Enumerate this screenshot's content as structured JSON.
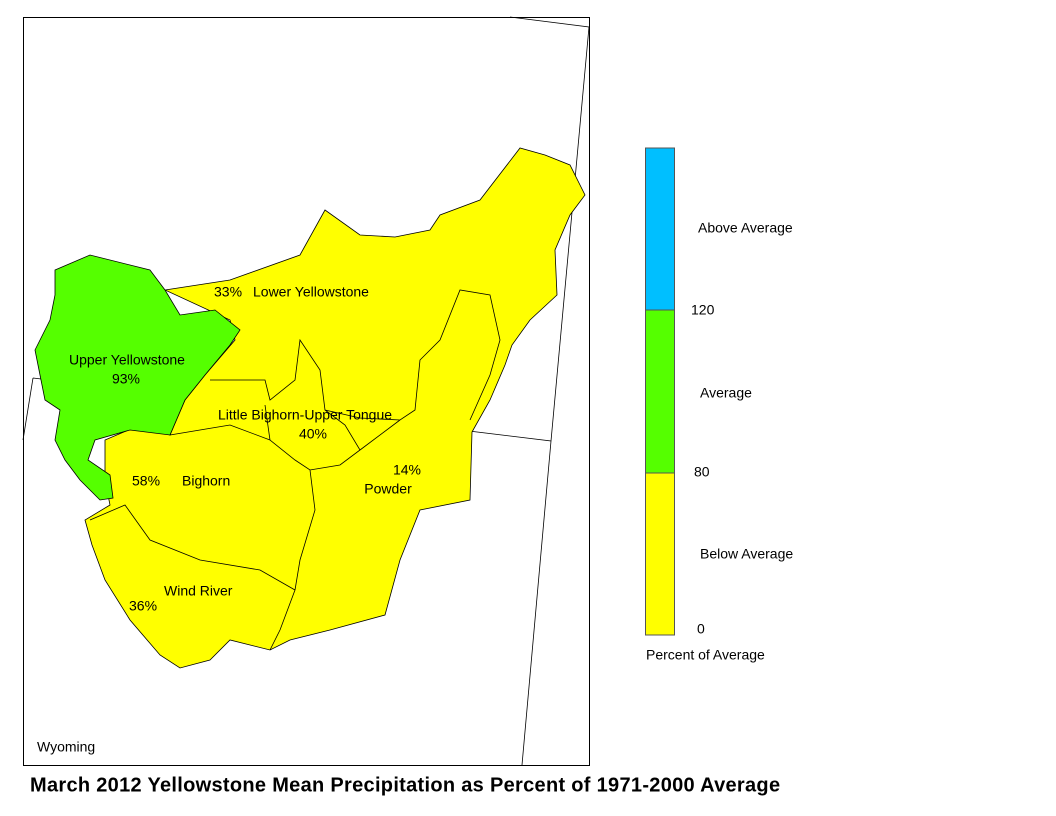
{
  "title": "March 2012 Yellowstone Mean Precipitation as Percent of 1971-2000 Average",
  "state_label": "Wyoming",
  "basins": [
    {
      "name": "Upper Yellowstone",
      "percent": "93%"
    },
    {
      "name": "Lower Yellowstone",
      "percent": "33%"
    },
    {
      "name": "Little Bighorn-Upper Tongue",
      "percent": "40%"
    },
    {
      "name": "Bighorn",
      "percent": "58%"
    },
    {
      "name": "Powder",
      "percent": "14%"
    },
    {
      "name": "Wind River",
      "percent": "36%"
    }
  ],
  "legend": {
    "title": "Percent of Average",
    "classes": [
      {
        "label": "Above Average",
        "color": "#00bfff"
      },
      {
        "label": "Average",
        "color": "#55ff00"
      },
      {
        "label": "Below Average",
        "color": "#ffff00"
      }
    ],
    "ticks": [
      120,
      80,
      0
    ]
  }
}
